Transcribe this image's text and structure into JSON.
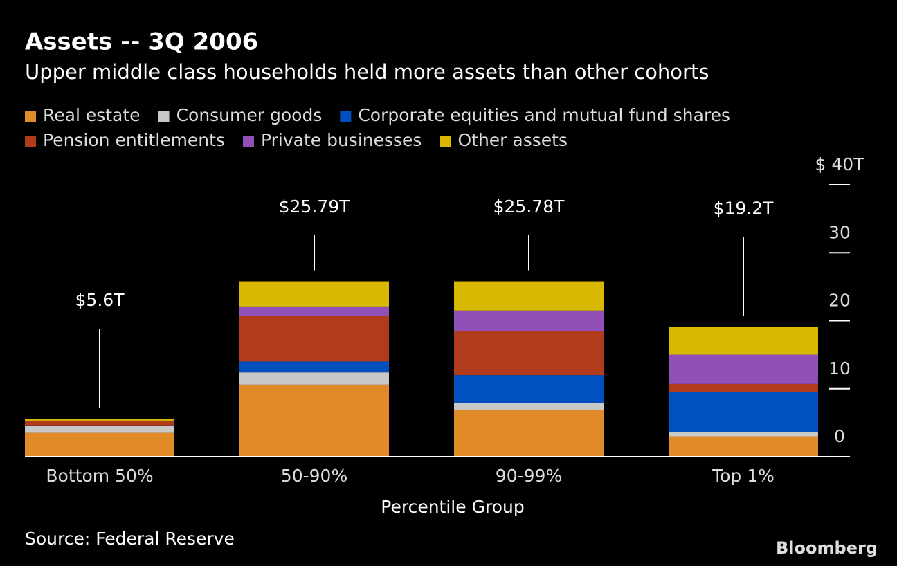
{
  "chart_data": {
    "type": "stacked_bar",
    "title": "Assets -- 3Q 2006",
    "subtitle": "Upper middle class households held more assets than other cohorts",
    "x_label": "Percentile Group",
    "source": "Source: Federal Reserve",
    "brand": "Bloomberg",
    "categories": [
      "Bottom 50%",
      "50-90%",
      "90-99%",
      "Top 1%"
    ],
    "annotations": [
      "$5.6T",
      "$25.79T",
      "$25.78T",
      "$19.2T"
    ],
    "series": [
      {
        "name": "Real estate",
        "color": "#e08a28",
        "values": [
          3.5,
          10.6,
          6.9,
          3.0
        ]
      },
      {
        "name": "Consumer goods",
        "color": "#c8c8c8",
        "values": [
          1.0,
          1.8,
          1.0,
          0.6
        ]
      },
      {
        "name": "Corporate equities and mutual fund shares",
        "color": "#0050c0",
        "values": [
          0.1,
          1.6,
          4.1,
          5.9
        ]
      },
      {
        "name": "Pension entitlements",
        "color": "#b03c1c",
        "values": [
          0.6,
          6.7,
          6.5,
          1.2
        ]
      },
      {
        "name": "Private businesses",
        "color": "#9050b8",
        "values": [
          0.1,
          1.4,
          3.0,
          4.3
        ]
      },
      {
        "name": "Other assets",
        "color": "#d8b800",
        "values": [
          0.3,
          3.7,
          4.3,
          4.1
        ]
      }
    ],
    "ylim": [
      0,
      40
    ],
    "yticks": [
      0,
      10,
      20,
      30,
      {
        "value": 40,
        "label": "$ 40T"
      }
    ],
    "legend": "top-left"
  }
}
